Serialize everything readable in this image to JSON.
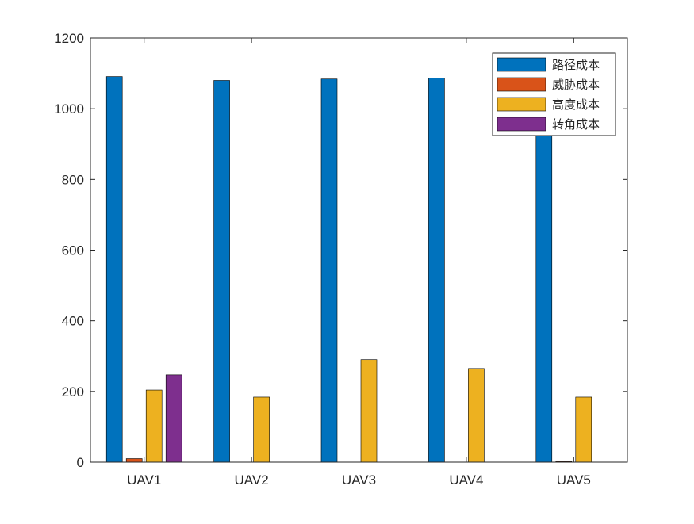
{
  "chart_data": {
    "type": "bar",
    "categories": [
      "UAV1",
      "UAV2",
      "UAV3",
      "UAV4",
      "UAV5"
    ],
    "series": [
      {
        "name": "路径成本",
        "color": "#0072BD",
        "values": [
          1091,
          1080,
          1084,
          1087,
          1078
        ]
      },
      {
        "name": "威胁成本",
        "color": "#D95319",
        "values": [
          10,
          0,
          0,
          0,
          2
        ]
      },
      {
        "name": "高度成本",
        "color": "#EDB120",
        "values": [
          204,
          184,
          290,
          265,
          184
        ]
      },
      {
        "name": "转角成本",
        "color": "#7E2F8E",
        "values": [
          247,
          0,
          0,
          0,
          0
        ]
      }
    ],
    "yticks": [
      "0",
      "200",
      "400",
      "600",
      "800",
      "1000",
      "1200"
    ],
    "ylim": [
      0,
      1200
    ],
    "xlabel": "",
    "ylabel": "",
    "title": "",
    "grid": false,
    "legend_position": "top-right"
  }
}
